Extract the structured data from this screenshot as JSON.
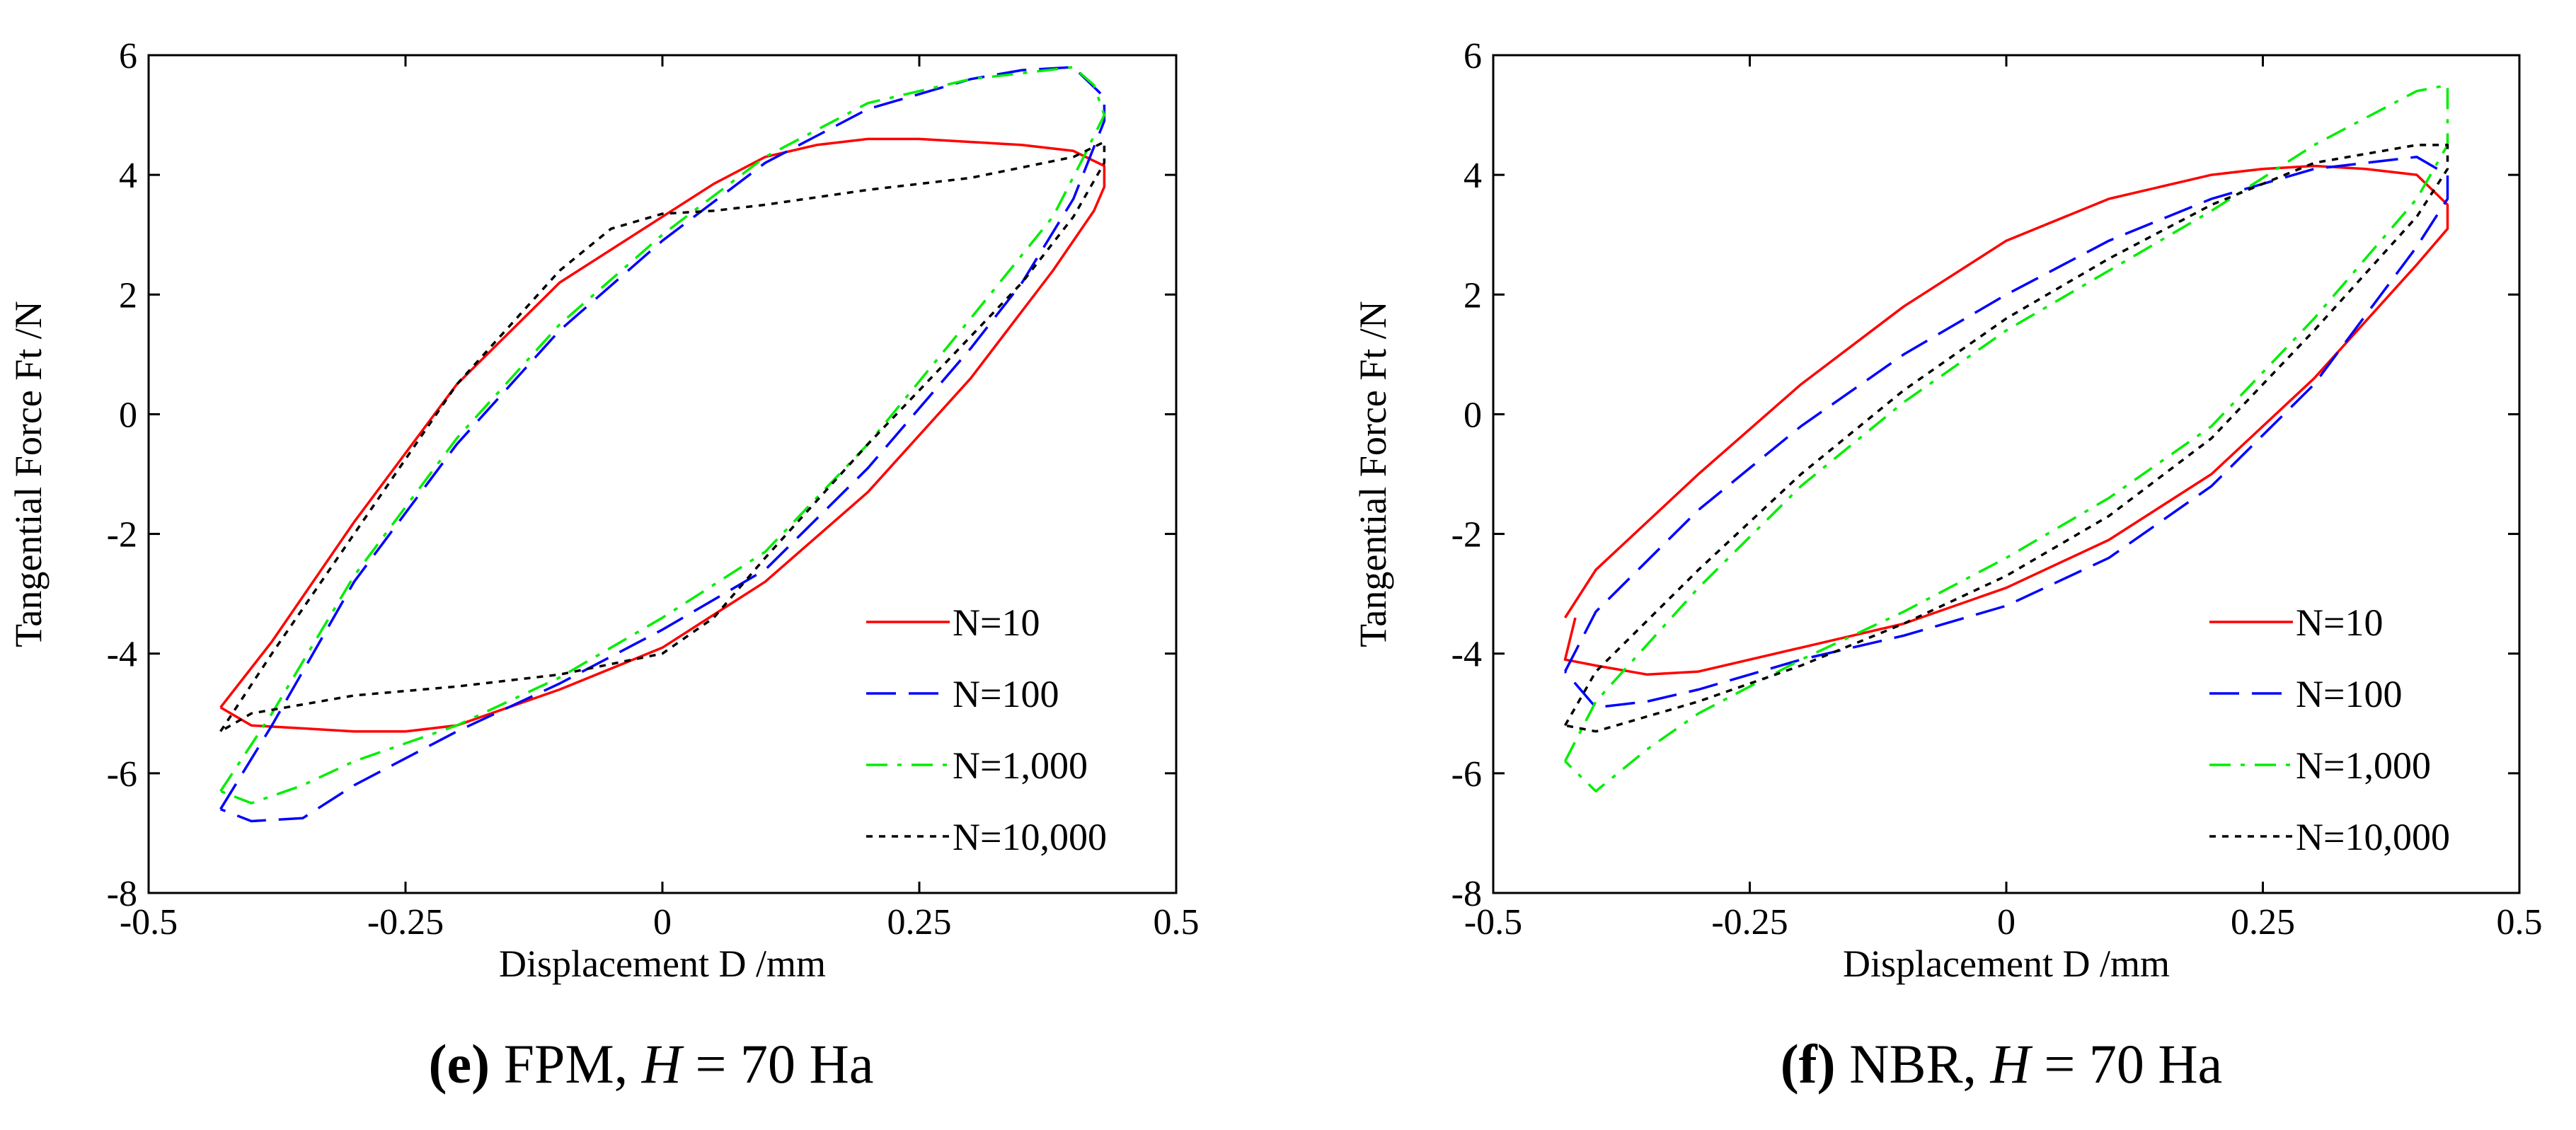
{
  "chart_data": [
    {
      "type": "line",
      "panel_id": "e",
      "caption": {
        "letter": "(e)",
        "material": "FPM,",
        "hardness_var": "H",
        "hardness_value": "= 70 Ha"
      },
      "xlabel": "Displacement D /mm",
      "ylabel": "Tangential Force Ft /N",
      "xlim": [
        -0.5,
        0.5
      ],
      "ylim": [
        -8,
        6
      ],
      "xticks": [
        -0.5,
        -0.25,
        0,
        0.25,
        0.5
      ],
      "xtick_labels": [
        "-0.5",
        "-0.25",
        "0",
        "0.25",
        "0.5"
      ],
      "yticks": [
        -8,
        -6,
        -4,
        -2,
        0,
        2,
        4,
        6
      ],
      "ytick_labels": [
        "-8",
        "-6",
        "-4",
        "-2",
        "0",
        "2",
        "4",
        "6"
      ],
      "grid": false,
      "legend_position": "lower-right",
      "series": [
        {
          "name": "N=10",
          "color": "#ff0000",
          "dash": "solid",
          "x": [
            -0.43,
            -0.38,
            -0.3,
            -0.2,
            -0.1,
            0,
            0.05,
            0.1,
            0.15,
            0.2,
            0.25,
            0.3,
            0.35,
            0.4,
            0.43,
            0.43,
            0.42,
            0.38,
            0.3,
            0.2,
            0.1,
            0,
            -0.1,
            -0.15,
            -0.2,
            -0.25,
            -0.3,
            -0.35,
            -0.4,
            -0.43
          ],
          "y": [
            -4.9,
            -3.8,
            -1.8,
            0.5,
            2.2,
            3.3,
            3.85,
            4.3,
            4.5,
            4.6,
            4.6,
            4.55,
            4.5,
            4.4,
            4.15,
            3.8,
            3.4,
            2.4,
            0.6,
            -1.3,
            -2.8,
            -3.9,
            -4.6,
            -4.9,
            -5.2,
            -5.3,
            -5.3,
            -5.25,
            -5.2,
            -4.9
          ]
        },
        {
          "name": "N=100",
          "color": "#0000ff",
          "dash": "long-dash",
          "x": [
            -0.43,
            -0.38,
            -0.3,
            -0.2,
            -0.1,
            0,
            0.1,
            0.2,
            0.3,
            0.35,
            0.4,
            0.43,
            0.43,
            0.4,
            0.35,
            0.3,
            0.2,
            0.1,
            0,
            -0.1,
            -0.2,
            -0.3,
            -0.35,
            -0.4,
            -0.43
          ],
          "y": [
            -6.6,
            -5.2,
            -2.8,
            -0.5,
            1.4,
            2.9,
            4.2,
            5.1,
            5.6,
            5.75,
            5.8,
            5.3,
            4.9,
            3.6,
            2.2,
            1.1,
            -0.9,
            -2.6,
            -3.6,
            -4.5,
            -5.3,
            -6.2,
            -6.75,
            -6.8,
            -6.6
          ]
        },
        {
          "name": "N=1,000",
          "color": "#00ee00",
          "dash": "dash-dot",
          "x": [
            -0.43,
            -0.38,
            -0.3,
            -0.2,
            -0.1,
            0,
            0.1,
            0.2,
            0.3,
            0.35,
            0.4,
            0.42,
            0.43,
            0.41,
            0.38,
            0.3,
            0.2,
            0.1,
            0,
            -0.1,
            -0.2,
            -0.3,
            -0.35,
            -0.4,
            -0.43
          ],
          "y": [
            -6.3,
            -5.0,
            -2.7,
            -0.4,
            1.5,
            3.0,
            4.3,
            5.2,
            5.6,
            5.7,
            5.8,
            5.5,
            5.0,
            4.3,
            3.3,
            1.6,
            -0.5,
            -2.3,
            -3.4,
            -4.4,
            -5.2,
            -5.8,
            -6.2,
            -6.5,
            -6.3
          ]
        },
        {
          "name": "N=10,000",
          "color": "#000000",
          "dash": "dotted",
          "x": [
            -0.43,
            -0.38,
            -0.3,
            -0.2,
            -0.1,
            -0.05,
            0,
            0.05,
            0.1,
            0.2,
            0.3,
            0.4,
            0.43,
            0.43,
            0.4,
            0.35,
            0.3,
            0.2,
            0.1,
            0.05,
            0,
            -0.1,
            -0.2,
            -0.3,
            -0.4,
            -0.43
          ],
          "y": [
            -5.3,
            -4.0,
            -2.0,
            0.5,
            2.4,
            3.1,
            3.35,
            3.4,
            3.5,
            3.75,
            3.95,
            4.3,
            4.55,
            4.2,
            3.3,
            2.2,
            1.3,
            -0.5,
            -2.4,
            -3.4,
            -4.0,
            -4.35,
            -4.55,
            -4.7,
            -5.0,
            -5.3
          ]
        }
      ]
    },
    {
      "type": "line",
      "panel_id": "f",
      "caption": {
        "letter": "(f)",
        "material": "NBR,",
        "hardness_var": "H",
        "hardness_value": "= 70 Ha"
      },
      "xlabel": "Displacement D /mm",
      "ylabel": "Tangential Force Ft /N",
      "xlim": [
        -0.5,
        0.5
      ],
      "ylim": [
        -8,
        6
      ],
      "xticks": [
        -0.5,
        -0.25,
        0,
        0.25,
        0.5
      ],
      "xtick_labels": [
        "-0.5",
        "-0.25",
        "0",
        "0.25",
        "0.5"
      ],
      "yticks": [
        -8,
        -6,
        -4,
        -2,
        0,
        2,
        4,
        6
      ],
      "ytick_labels": [
        "-8",
        "-6",
        "-4",
        "-2",
        "0",
        "2",
        "4",
        "6"
      ],
      "grid": false,
      "legend_position": "lower-right",
      "series": [
        {
          "name": "N=10",
          "color": "#ff0000",
          "dash": "solid",
          "x": [
            -0.43,
            -0.4,
            -0.3,
            -0.2,
            -0.1,
            0,
            0.1,
            0.2,
            0.25,
            0.3,
            0.35,
            0.4,
            0.43,
            0.43,
            0.4,
            0.3,
            0.2,
            0.1,
            0,
            -0.1,
            -0.2,
            -0.3,
            -0.35,
            -0.4,
            -0.43,
            -0.42
          ],
          "y": [
            -3.4,
            -2.6,
            -1.0,
            0.5,
            1.8,
            2.9,
            3.6,
            4.0,
            4.1,
            4.15,
            4.1,
            4.0,
            3.5,
            3.1,
            2.5,
            0.6,
            -1.0,
            -2.1,
            -2.9,
            -3.5,
            -3.9,
            -4.3,
            -4.35,
            -4.2,
            -4.1,
            -3.4
          ]
        },
        {
          "name": "N=100",
          "color": "#0000ff",
          "dash": "long-dash",
          "x": [
            -0.43,
            -0.4,
            -0.3,
            -0.2,
            -0.1,
            0,
            0.1,
            0.2,
            0.3,
            0.4,
            0.43,
            0.43,
            0.4,
            0.3,
            0.2,
            0.1,
            0,
            -0.1,
            -0.2,
            -0.3,
            -0.35,
            -0.4,
            -0.43
          ],
          "y": [
            -4.3,
            -3.3,
            -1.6,
            -0.2,
            1.0,
            2.0,
            2.9,
            3.6,
            4.1,
            4.3,
            4.0,
            3.6,
            2.8,
            0.5,
            -1.2,
            -2.4,
            -3.2,
            -3.7,
            -4.1,
            -4.6,
            -4.8,
            -4.9,
            -4.3
          ]
        },
        {
          "name": "N=1,000",
          "color": "#00ee00",
          "dash": "dash-dot",
          "x": [
            -0.43,
            -0.4,
            -0.3,
            -0.2,
            -0.1,
            0,
            0.1,
            0.2,
            0.3,
            0.4,
            0.43,
            0.43,
            0.4,
            0.3,
            0.2,
            0.1,
            0,
            -0.1,
            -0.2,
            -0.3,
            -0.35,
            -0.4,
            -0.43
          ],
          "y": [
            -5.8,
            -4.8,
            -2.9,
            -1.2,
            0.2,
            1.4,
            2.4,
            3.4,
            4.5,
            5.4,
            5.5,
            4.5,
            3.6,
            1.6,
            -0.2,
            -1.4,
            -2.4,
            -3.3,
            -4.1,
            -5.0,
            -5.6,
            -6.3,
            -5.8
          ]
        },
        {
          "name": "N=10,000",
          "color": "#000000",
          "dash": "dotted",
          "x": [
            -0.43,
            -0.4,
            -0.3,
            -0.2,
            -0.1,
            0,
            0.1,
            0.2,
            0.3,
            0.4,
            0.43,
            0.43,
            0.4,
            0.3,
            0.2,
            0.1,
            0,
            -0.1,
            -0.2,
            -0.3,
            -0.4,
            -0.43
          ],
          "y": [
            -5.2,
            -4.3,
            -2.6,
            -1.0,
            0.4,
            1.6,
            2.6,
            3.5,
            4.2,
            4.5,
            4.5,
            4.1,
            3.3,
            1.4,
            -0.4,
            -1.7,
            -2.7,
            -3.5,
            -4.2,
            -4.8,
            -5.3,
            -5.2
          ]
        }
      ]
    }
  ]
}
